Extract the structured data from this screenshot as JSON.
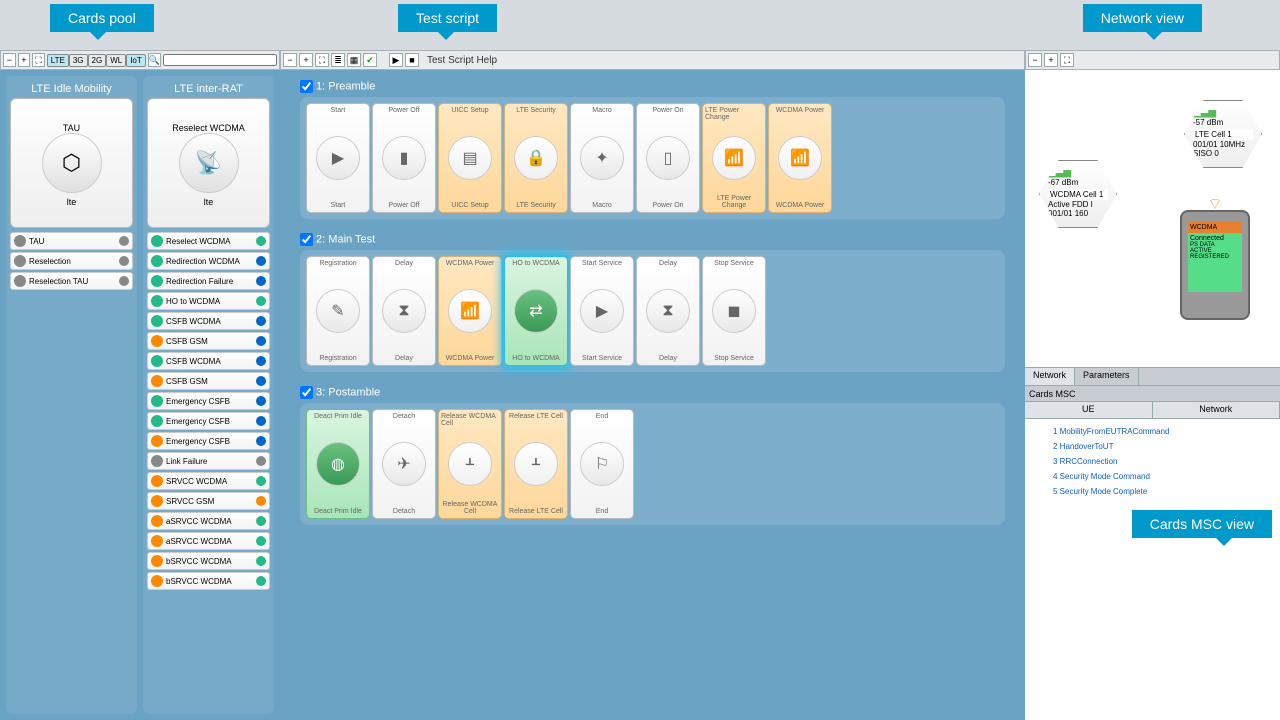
{
  "colors": {
    "bg_panel": "#6ba3c4",
    "callout": "#0099cc",
    "card_orange": "#ffd79a",
    "card_green": "#a8e5b8",
    "highlight": "#20c0f0"
  },
  "callouts": {
    "cards_pool": "Cards pool",
    "test_script": "Test script",
    "network_view": "Network view",
    "cards_msc": "Cards MSC view"
  },
  "pool_toolbar": {
    "filters": [
      "LTE",
      "3G",
      "2G",
      "WL",
      "IoT"
    ],
    "filters_active": [
      true,
      false,
      false,
      false,
      true
    ]
  },
  "pool": {
    "col1": {
      "title": "LTE Idle Mobility",
      "big_card": "TAU",
      "items": [
        "TAU",
        "Reselection",
        "Reselection TAU"
      ]
    },
    "col2": {
      "title": "LTE inter-RAT",
      "big_card": "Reselect WCDMA",
      "items": [
        {
          "label": "Reselect WCDMA",
          "c1": "#2b8",
          "c2": "#2b8"
        },
        {
          "label": "Redirection WCDMA",
          "c1": "#2b8",
          "c2": "#06c"
        },
        {
          "label": "Redirection Failure",
          "c1": "#2b8",
          "c2": "#06c"
        },
        {
          "label": "HO to WCDMA",
          "c1": "#2b8",
          "c2": "#2b8"
        },
        {
          "label": "CSFB WCDMA",
          "c1": "#2b8",
          "c2": "#06c"
        },
        {
          "label": "CSFB GSM",
          "c1": "#f80",
          "c2": "#06c"
        },
        {
          "label": "CSFB WCDMA",
          "c1": "#2b8",
          "c2": "#06c"
        },
        {
          "label": "CSFB GSM",
          "c1": "#f80",
          "c2": "#06c"
        },
        {
          "label": "Emergency CSFB",
          "c1": "#2b8",
          "c2": "#06c"
        },
        {
          "label": "Emergency CSFB",
          "c1": "#2b8",
          "c2": "#06c"
        },
        {
          "label": "Emergency CSFB",
          "c1": "#f80",
          "c2": "#06c"
        },
        {
          "label": "Link Failure",
          "c1": "#888",
          "c2": "#888"
        },
        {
          "label": "SRVCC WCDMA",
          "c1": "#f80",
          "c2": "#2b8"
        },
        {
          "label": "SRVCC GSM",
          "c1": "#f80",
          "c2": "#f80"
        },
        {
          "label": "aSRVCC WCDMA",
          "c1": "#f80",
          "c2": "#2b8"
        },
        {
          "label": "aSRVCC WCDMA",
          "c1": "#f80",
          "c2": "#2b8"
        },
        {
          "label": "bSRVCC WCDMA",
          "c1": "#f80",
          "c2": "#2b8"
        },
        {
          "label": "bSRVCC WCDMA",
          "c1": "#f80",
          "c2": "#2b8"
        }
      ]
    }
  },
  "script_toolbar": {
    "help": "Test Script Help"
  },
  "script": {
    "sections": [
      {
        "title": "1: Preamble",
        "cards": [
          {
            "top": "Start",
            "bot": "Start",
            "icon": "▶",
            "style": "grey"
          },
          {
            "top": "Power Off",
            "bot": "Power Off",
            "icon": "▮",
            "style": "grey"
          },
          {
            "top": "UICC Setup",
            "bot": "UICC Setup",
            "icon": "▤",
            "style": "orange"
          },
          {
            "top": "LTE Security",
            "bot": "LTE Security",
            "icon": "🔒",
            "style": "orange"
          },
          {
            "top": "Macro",
            "bot": "Macro",
            "icon": "✦",
            "style": "grey"
          },
          {
            "top": "Power On",
            "bot": "Power On",
            "icon": "▯",
            "style": "grey"
          },
          {
            "top": "LTE Power Change",
            "bot": "LTE Power Change",
            "icon": "📶",
            "style": "orange"
          },
          {
            "top": "WCDMA Power",
            "bot": "WCDMA Power",
            "icon": "📶",
            "style": "orange"
          }
        ]
      },
      {
        "title": "2: Main Test",
        "cards": [
          {
            "top": "Registration",
            "bot": "Registration",
            "icon": "✎",
            "style": "grey"
          },
          {
            "top": "Delay",
            "bot": "Delay",
            "icon": "⧗",
            "style": "grey"
          },
          {
            "top": "WCDMA Power",
            "bot": "WCDMA Power",
            "icon": "📶",
            "style": "orange"
          },
          {
            "top": "HO to WCDMA",
            "bot": "HO to WCDMA",
            "icon": "⇄",
            "style": "green",
            "selected": true
          },
          {
            "top": "Start Service",
            "bot": "Start Service",
            "icon": "▶",
            "style": "grey"
          },
          {
            "top": "Delay",
            "bot": "Delay",
            "icon": "⧗",
            "style": "grey"
          },
          {
            "top": "Stop Service",
            "bot": "Stop Service",
            "icon": "◼",
            "style": "grey"
          }
        ]
      },
      {
        "title": "3: Postamble",
        "cards": [
          {
            "top": "Deact Prim Idle",
            "bot": "Deact Prim Idle",
            "icon": "◍",
            "style": "green"
          },
          {
            "top": "Detach",
            "bot": "Detach",
            "icon": "✈",
            "style": "grey"
          },
          {
            "top": "Release WCDMA Cell",
            "bot": "Release WCDMA Cell",
            "icon": "ᚆ",
            "style": "orange"
          },
          {
            "top": "Release LTE Cell",
            "bot": "Release LTE Cell",
            "icon": "ᚆ",
            "style": "orange"
          },
          {
            "top": "End",
            "bot": "End",
            "icon": "⚐",
            "style": "grey"
          }
        ]
      }
    ]
  },
  "network": {
    "lte": {
      "tech": "lte",
      "rsrp": "-57 dBm",
      "cell": "LTE Cell 1",
      "line2": "001/01  10MHz",
      "line3": "SISO   0"
    },
    "wcdma": {
      "tech": "WCDMA",
      "rsrp": "-67 dBm",
      "cell": "WCDMA Cell 1",
      "line2": "Active  FDD I",
      "line3": "001/01  160"
    },
    "ue": {
      "tech": "WCDMA",
      "state": "Connected",
      "detail": "PS DATA\nACTIVE\nREGISTERED"
    },
    "tabs": [
      "Network",
      "Parameters"
    ],
    "msc_title": "Cards MSC",
    "msc_cols": [
      "UE",
      "Network"
    ],
    "msc_msgs": [
      "1 MobilityFromEUTRACommand",
      "2 HandoverToUT",
      "3 RRCConnection",
      "4 Security Mode Command",
      "5 Security Mode Complete"
    ]
  }
}
